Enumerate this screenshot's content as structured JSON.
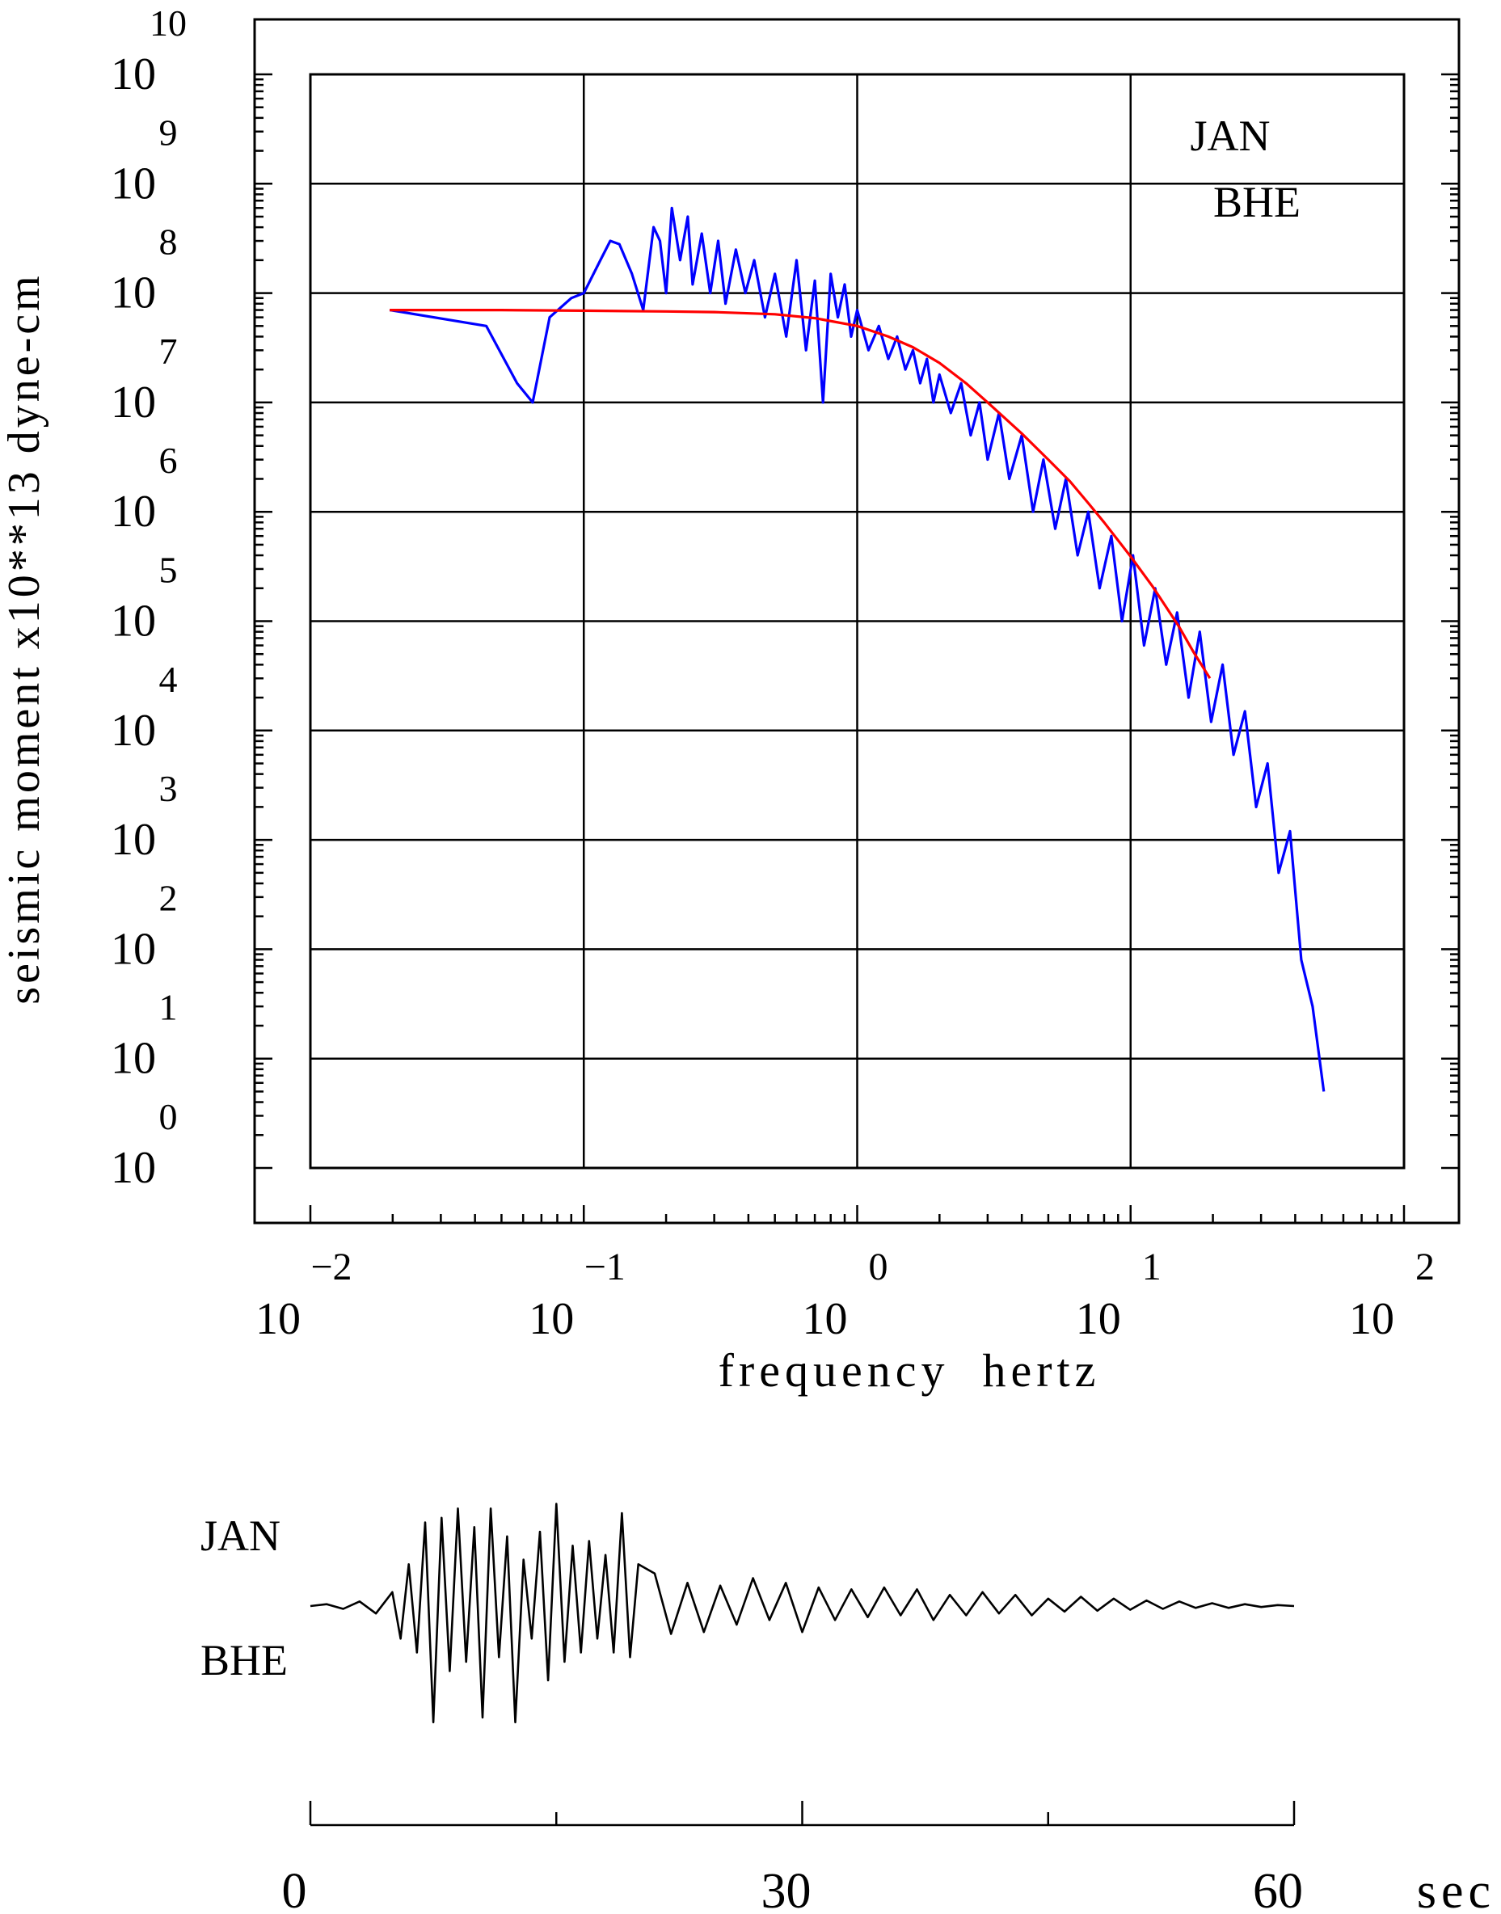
{
  "chart_data": [
    {
      "type": "line",
      "title": "",
      "xlabel": "frequency  hertz",
      "ylabel": "seismic moment x10**13 dyne-cm",
      "x_scale": "log",
      "y_scale": "log",
      "xlim": [
        0.01,
        100
      ],
      "ylim": [
        1,
        10000000000
      ],
      "grid": true,
      "x_ticks": [
        {
          "base": "10",
          "exp": "−2"
        },
        {
          "base": "10",
          "exp": "−1"
        },
        {
          "base": "10",
          "exp": "0"
        },
        {
          "base": "10",
          "exp": "1"
        },
        {
          "base": "10",
          "exp": "2"
        }
      ],
      "y_ticks": [
        {
          "base": "10",
          "exp": "0"
        },
        {
          "base": "10",
          "exp": "1"
        },
        {
          "base": "10",
          "exp": "2"
        },
        {
          "base": "10",
          "exp": "3"
        },
        {
          "base": "10",
          "exp": "4"
        },
        {
          "base": "10",
          "exp": "5"
        },
        {
          "base": "10",
          "exp": "6"
        },
        {
          "base": "10",
          "exp": "7"
        },
        {
          "base": "10",
          "exp": "8"
        },
        {
          "base": "10",
          "exp": "9"
        },
        {
          "base": "10",
          "exp": "10"
        }
      ],
      "annotation": [
        "JAN",
        "BHE"
      ],
      "series": [
        {
          "color": "#0000ff",
          "x": [
            0.0195,
            0.044,
            0.057,
            0.065,
            0.075,
            0.09,
            0.1,
            0.115,
            0.125,
            0.135,
            0.15,
            0.165,
            0.18,
            0.19,
            0.2,
            0.21,
            0.225,
            0.24,
            0.25,
            0.27,
            0.29,
            0.31,
            0.33,
            0.36,
            0.39,
            0.42,
            0.46,
            0.5,
            0.55,
            0.6,
            0.65,
            0.7,
            0.75,
            0.8,
            0.85,
            0.9,
            0.95,
            1.0,
            1.1,
            1.2,
            1.3,
            1.4,
            1.5,
            1.6,
            1.7,
            1.8,
            1.9,
            2.0,
            2.2,
            2.4,
            2.6,
            2.8,
            3.0,
            3.3,
            3.6,
            4.0,
            4.4,
            4.8,
            5.3,
            5.8,
            6.4,
            7.0,
            7.7,
            8.5,
            9.3,
            10.2,
            11.2,
            12.3,
            13.5,
            14.8,
            16.3,
            17.9,
            19.7,
            21.7,
            23.8,
            26.2,
            28.8,
            31.7,
            34.8,
            38.3,
            42.1,
            46.3,
            50.9
          ],
          "y": [
            70000000,
            50000000,
            15000000,
            10000000,
            60000000,
            90000000,
            100000000,
            200000000,
            300000000,
            280000000,
            150000000,
            70000000,
            400000000,
            300000000,
            100000000,
            600000000,
            200000000,
            500000000,
            120000000,
            350000000,
            100000000,
            300000000,
            80000000,
            250000000,
            100000000,
            200000000,
            60000000,
            150000000,
            40000000,
            200000000,
            30000000,
            130000000,
            10000000,
            150000000,
            60000000,
            120000000,
            40000000,
            70000000,
            30000000,
            50000000,
            25000000,
            40000000,
            20000000,
            30000000,
            15000000,
            25000000,
            10000000,
            18000000,
            8000000,
            15000000,
            5000000,
            10000000,
            3000000,
            8000000,
            2000000,
            5000000,
            1000000,
            3000000,
            700000,
            2000000,
            400000,
            1000000,
            200000,
            600000,
            100000,
            400000,
            60000,
            200000,
            40000,
            120000,
            20000,
            80000,
            12000,
            40000,
            6000,
            15000,
            2000,
            5000,
            500,
            1200,
            80,
            30,
            5
          ]
        },
        {
          "color": "#ff0000",
          "x": [
            0.0195,
            0.05,
            0.1,
            0.2,
            0.3,
            0.5,
            0.7,
            1.0,
            1.3,
            1.6,
            2.0,
            2.5,
            3.0,
            4.0,
            5.0,
            6.0,
            7.0,
            8.0,
            10.0,
            12.0,
            15.0,
            17.0,
            19.5
          ],
          "y": [
            70000000,
            70000000,
            69000000,
            68000000,
            67000000,
            64000000,
            59000000,
            50000000,
            40000000,
            32000000,
            23000000,
            15000000,
            10000000,
            5200000,
            3000000,
            1900000,
            1200000,
            800000,
            390000,
            210000,
            90000,
            52000,
            30000
          ]
        }
      ]
    },
    {
      "type": "line",
      "title": "",
      "xlabel": "sec",
      "ylabel": "",
      "xlim": [
        0,
        60
      ],
      "x_ticks": [
        "0",
        "30",
        "60"
      ],
      "annotation": [
        "JAN",
        "BHE"
      ],
      "series": [
        {
          "color": "#000000",
          "x": [
            0,
            1,
            2,
            3,
            4,
            5,
            5.5,
            6,
            6.5,
            7,
            7.5,
            8,
            8.5,
            9,
            9.5,
            10,
            10.5,
            11,
            11.5,
            12,
            12.5,
            13,
            13.5,
            14,
            14.5,
            15,
            15.5,
            16,
            16.5,
            17,
            17.5,
            18,
            18.5,
            19,
            19.5,
            20,
            21,
            22,
            23,
            24,
            25,
            26,
            27,
            28,
            29,
            30,
            31,
            32,
            33,
            34,
            35,
            36,
            37,
            38,
            39,
            40,
            41,
            42,
            43,
            44,
            45,
            46,
            47,
            48,
            49,
            50,
            51,
            52,
            53,
            54,
            55,
            56,
            57,
            58,
            59,
            60
          ],
          "y": [
            0,
            0.02,
            -0.03,
            0.05,
            -0.08,
            0.15,
            -0.35,
            0.45,
            -0.5,
            0.9,
            -1.25,
            0.95,
            -0.7,
            1.05,
            -0.6,
            0.85,
            -1.2,
            1.05,
            -0.55,
            0.75,
            -1.25,
            0.5,
            -0.35,
            0.8,
            -0.8,
            1.1,
            -0.6,
            0.65,
            -0.5,
            0.7,
            -0.35,
            0.55,
            -0.5,
            1.0,
            -0.55,
            0.45,
            0.35,
            -0.3,
            0.25,
            -0.28,
            0.22,
            -0.2,
            0.3,
            -0.15,
            0.25,
            -0.28,
            0.2,
            -0.15,
            0.18,
            -0.12,
            0.2,
            -0.1,
            0.18,
            -0.15,
            0.12,
            -0.1,
            0.15,
            -0.08,
            0.12,
            -0.1,
            0.08,
            -0.06,
            0.1,
            -0.05,
            0.08,
            -0.04,
            0.06,
            -0.03,
            0.05,
            -0.02,
            0.03,
            -0.02,
            0.02,
            -0.01,
            0.01,
            0
          ]
        }
      ]
    }
  ]
}
